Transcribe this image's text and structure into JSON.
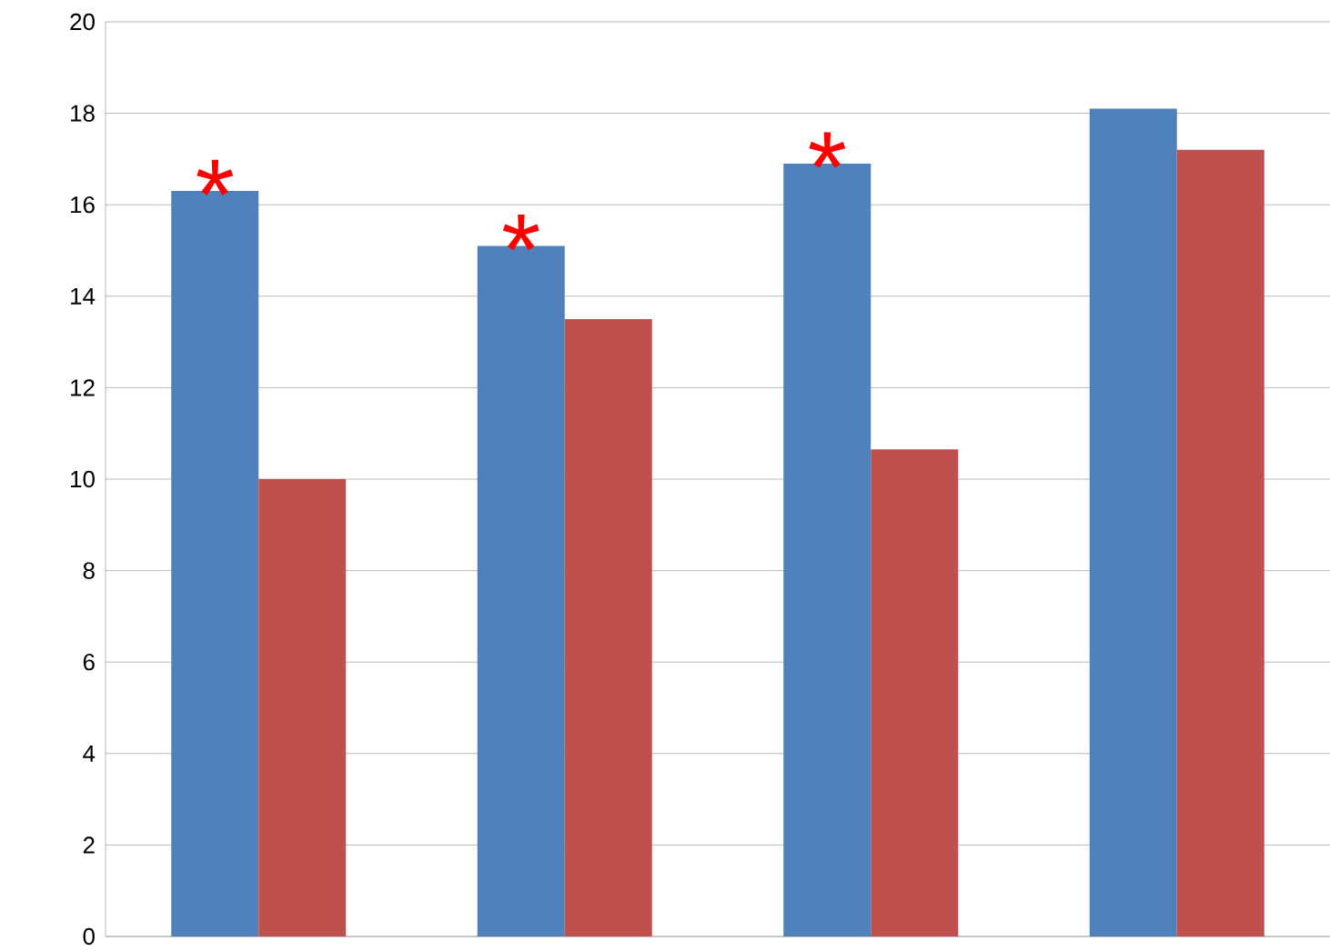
{
  "chart_data": {
    "type": "bar",
    "categories": [
      null,
      null,
      null,
      null
    ],
    "series": [
      {
        "color": "#4f81bd",
        "values": [
          16.3,
          15.1,
          16.9,
          18.1
        ]
      },
      {
        "color": "#c0504d",
        "values": [
          10.0,
          13.5,
          10.65,
          17.2
        ]
      }
    ],
    "ylim": [
      0,
      20
    ],
    "yticks": [
      0,
      2,
      4,
      6,
      8,
      10,
      12,
      14,
      16,
      18,
      20
    ],
    "grid": "y",
    "annotations": [
      "*",
      "*",
      "*"
    ]
  }
}
